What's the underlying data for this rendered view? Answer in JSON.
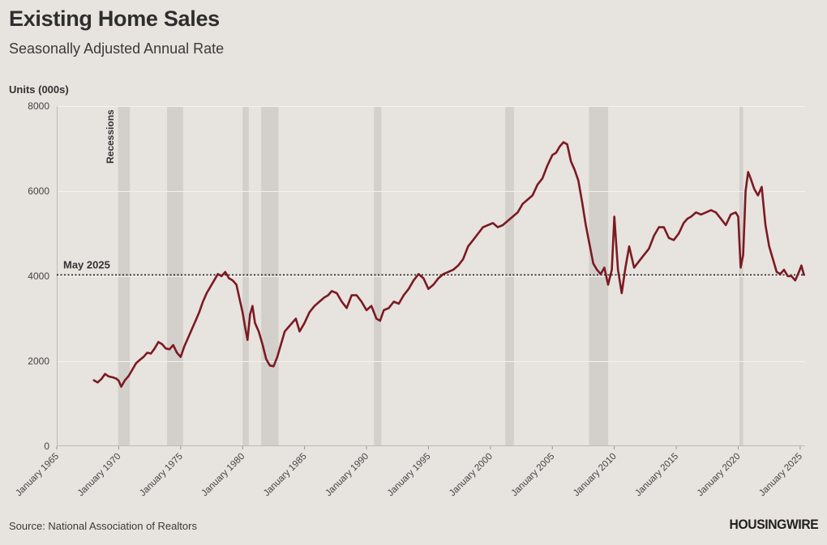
{
  "header": {
    "title": "Existing Home Sales",
    "subtitle": "Seasonally Adjusted Annual Rate"
  },
  "footer": {
    "source": "Source: National Association of Realtors",
    "brand": "HOUSINGWIRE"
  },
  "colors": {
    "background": "#e7e3df",
    "line": "#7b1a22",
    "recession": "#d3d0cc",
    "grid": "#f3f1ee",
    "reference": "#222222"
  },
  "chart_data": {
    "type": "line",
    "title": "Existing Home Sales",
    "subtitle": "Seasonally Adjusted Annual Rate",
    "ylabel": "Units (000s)",
    "xlabel": "",
    "ylim": [
      0,
      8000
    ],
    "xlim": [
      1965.0,
      2025.4
    ],
    "y_ticks": [
      0,
      2000,
      4000,
      6000,
      8000
    ],
    "x_ticks": [
      {
        "value": 1965,
        "label": "January 1965"
      },
      {
        "value": 1970,
        "label": "January 1970"
      },
      {
        "value": 1975,
        "label": "January 1975"
      },
      {
        "value": 1980,
        "label": "January 1980"
      },
      {
        "value": 1985,
        "label": "January 1985"
      },
      {
        "value": 1990,
        "label": "January 1990"
      },
      {
        "value": 1995,
        "label": "January 1995"
      },
      {
        "value": 2000,
        "label": "January 2000"
      },
      {
        "value": 2005,
        "label": "January 2005"
      },
      {
        "value": 2010,
        "label": "January 2010"
      },
      {
        "value": 2015,
        "label": "January 2015"
      },
      {
        "value": 2020,
        "label": "January 2020"
      },
      {
        "value": 2025,
        "label": "January 2025"
      }
    ],
    "recessions": [
      {
        "start": 1969.95,
        "end": 1970.9
      },
      {
        "start": 1973.9,
        "end": 1975.2
      },
      {
        "start": 1980.0,
        "end": 1980.5
      },
      {
        "start": 1981.5,
        "end": 1982.9
      },
      {
        "start": 1990.6,
        "end": 1991.2
      },
      {
        "start": 2001.2,
        "end": 2001.9
      },
      {
        "start": 2007.95,
        "end": 2009.5
      },
      {
        "start": 2020.1,
        "end": 2020.4
      }
    ],
    "recession_label": "Recessions",
    "reference_line": {
      "value": 4030,
      "label": "May 2025"
    },
    "series": [
      {
        "name": "Existing Home Sales",
        "x": [
          1968.0,
          1968.3,
          1968.6,
          1968.9,
          1969.2,
          1969.5,
          1969.8,
          1970.0,
          1970.2,
          1970.5,
          1970.8,
          1971.1,
          1971.4,
          1971.7,
          1972.0,
          1972.3,
          1972.6,
          1972.9,
          1973.2,
          1973.5,
          1973.8,
          1974.1,
          1974.4,
          1974.7,
          1975.0,
          1975.3,
          1975.6,
          1975.9,
          1976.2,
          1976.5,
          1976.8,
          1977.1,
          1977.4,
          1977.7,
          1978.0,
          1978.3,
          1978.6,
          1978.9,
          1979.2,
          1979.5,
          1979.8,
          1980.0,
          1980.2,
          1980.4,
          1980.6,
          1980.8,
          1981.0,
          1981.3,
          1981.6,
          1981.9,
          1982.2,
          1982.5,
          1982.8,
          1983.1,
          1983.4,
          1983.7,
          1984.0,
          1984.3,
          1984.6,
          1985.0,
          1985.4,
          1985.8,
          1986.2,
          1986.6,
          1986.9,
          1987.2,
          1987.6,
          1988.0,
          1988.4,
          1988.8,
          1989.2,
          1989.6,
          1990.0,
          1990.4,
          1990.8,
          1991.1,
          1991.4,
          1991.8,
          1992.2,
          1992.6,
          1993.0,
          1993.4,
          1993.8,
          1994.2,
          1994.6,
          1995.0,
          1995.4,
          1995.8,
          1996.2,
          1996.6,
          1997.0,
          1997.4,
          1997.8,
          1998.2,
          1998.6,
          1999.0,
          1999.4,
          1999.8,
          2000.2,
          2000.6,
          2001.0,
          2001.4,
          2001.8,
          2002.2,
          2002.6,
          2003.0,
          2003.4,
          2003.8,
          2004.2,
          2004.6,
          2005.0,
          2005.3,
          2005.6,
          2005.9,
          2006.2,
          2006.5,
          2006.8,
          2007.1,
          2007.4,
          2007.7,
          2008.0,
          2008.3,
          2008.6,
          2008.9,
          2009.2,
          2009.5,
          2009.8,
          2010.0,
          2010.3,
          2010.6,
          2010.9,
          2011.2,
          2011.6,
          2012.0,
          2012.4,
          2012.8,
          2013.2,
          2013.6,
          2014.0,
          2014.4,
          2014.8,
          2015.2,
          2015.6,
          2015.9,
          2016.2,
          2016.6,
          2017.0,
          2017.4,
          2017.8,
          2018.2,
          2018.6,
          2019.0,
          2019.4,
          2019.8,
          2020.0,
          2020.2,
          2020.4,
          2020.6,
          2020.8,
          2021.0,
          2021.3,
          2021.6,
          2021.9,
          2022.2,
          2022.5,
          2022.8,
          2023.1,
          2023.4,
          2023.7,
          2024.0,
          2024.3,
          2024.6,
          2024.9,
          2025.1,
          2025.3
        ],
        "y": [
          1550,
          1500,
          1580,
          1700,
          1640,
          1620,
          1590,
          1540,
          1400,
          1550,
          1650,
          1800,
          1950,
          2030,
          2100,
          2200,
          2180,
          2300,
          2450,
          2400,
          2300,
          2280,
          2380,
          2200,
          2100,
          2350,
          2550,
          2750,
          2950,
          3150,
          3400,
          3600,
          3750,
          3900,
          4050,
          4000,
          4100,
          3950,
          3900,
          3800,
          3400,
          3150,
          2800,
          2500,
          3100,
          3300,
          2900,
          2700,
          2400,
          2050,
          1900,
          1880,
          2100,
          2400,
          2700,
          2800,
          2900,
          3000,
          2700,
          2900,
          3150,
          3300,
          3400,
          3500,
          3550,
          3650,
          3600,
          3400,
          3250,
          3550,
          3550,
          3400,
          3200,
          3300,
          3000,
          2950,
          3200,
          3250,
          3400,
          3350,
          3550,
          3700,
          3900,
          4050,
          3950,
          3700,
          3800,
          3950,
          4050,
          4100,
          4150,
          4250,
          4400,
          4700,
          4850,
          5000,
          5150,
          5200,
          5250,
          5150,
          5200,
          5300,
          5400,
          5500,
          5700,
          5800,
          5900,
          6150,
          6300,
          6600,
          6850,
          6900,
          7050,
          7150,
          7100,
          6700,
          6500,
          6250,
          5750,
          5200,
          4750,
          4300,
          4150,
          4050,
          4200,
          3800,
          4150,
          5400,
          4150,
          3600,
          4200,
          4700,
          4200,
          4350,
          4500,
          4650,
          4950,
          5150,
          5150,
          4900,
          4850,
          5000,
          5250,
          5350,
          5400,
          5500,
          5450,
          5500,
          5550,
          5500,
          5350,
          5200,
          5450,
          5500,
          5400,
          4200,
          4500,
          6000,
          6450,
          6300,
          6050,
          5900,
          6100,
          5200,
          4700,
          4400,
          4100,
          4050,
          4150,
          4000,
          4000,
          3900,
          4100,
          4250,
          4030
        ]
      }
    ]
  }
}
